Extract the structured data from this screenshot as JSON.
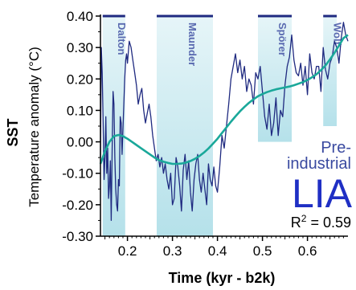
{
  "chart_data": {
    "type": "line",
    "xlabel": "Time (kyr - b2k)",
    "ylabel_bold": "SST",
    "ylabel": "Temperature anomaly (°C)",
    "xlim": [
      0.14,
      0.69
    ],
    "ylim": [
      -0.3,
      0.4
    ],
    "xticks": [
      {
        "value": 0.2,
        "label": "0.2"
      },
      {
        "value": 0.3,
        "label": "0.3"
      },
      {
        "value": 0.4,
        "label": "0.4"
      },
      {
        "value": 0.5,
        "label": "0.5"
      },
      {
        "value": 0.6,
        "label": "0.6"
      }
    ],
    "yticks": [
      {
        "value": 0.4,
        "label": "0.40"
      },
      {
        "value": 0.3,
        "label": "0.30"
      },
      {
        "value": 0.2,
        "label": "0.20"
      },
      {
        "value": 0.1,
        "label": "0.10"
      },
      {
        "value": 0.0,
        "label": "0.00"
      },
      {
        "value": -0.1,
        "label": "-0.10"
      },
      {
        "value": -0.2,
        "label": "-0.20"
      },
      {
        "value": -0.3,
        "label": "-0.30"
      }
    ],
    "grid": false,
    "minima": [
      {
        "name": "Dalton",
        "x_start": 0.145,
        "x_end": 0.195,
        "y_bottom": -0.3
      },
      {
        "name": "Maunder",
        "x_start": 0.265,
        "x_end": 0.39,
        "y_bottom": -0.3
      },
      {
        "name": "Spörer",
        "x_start": 0.49,
        "x_end": 0.565,
        "y_bottom": 0.0
      },
      {
        "name": "Wolf",
        "x_start": 0.635,
        "x_end": 0.665,
        "y_bottom": 0.05
      }
    ],
    "series": [
      {
        "color": "#1f2a80",
        "x": [
          0.14,
          0.142,
          0.144,
          0.146,
          0.148,
          0.15,
          0.152,
          0.154,
          0.156,
          0.158,
          0.16,
          0.162,
          0.164,
          0.166,
          0.168,
          0.17,
          0.172,
          0.174,
          0.176,
          0.178,
          0.18,
          0.182,
          0.184,
          0.186,
          0.188,
          0.19,
          0.192,
          0.194,
          0.196,
          0.198,
          0.2,
          0.204,
          0.208,
          0.212,
          0.216,
          0.22,
          0.224,
          0.228,
          0.232,
          0.236,
          0.24,
          0.244,
          0.248,
          0.252,
          0.256,
          0.26,
          0.264,
          0.268,
          0.272,
          0.276,
          0.28,
          0.284,
          0.288,
          0.292,
          0.296,
          0.3,
          0.304,
          0.308,
          0.312,
          0.316,
          0.32,
          0.324,
          0.328,
          0.332,
          0.336,
          0.34,
          0.344,
          0.348,
          0.352,
          0.356,
          0.36,
          0.364,
          0.368,
          0.372,
          0.376,
          0.38,
          0.384,
          0.388,
          0.392,
          0.396,
          0.4,
          0.405,
          0.41,
          0.415,
          0.42,
          0.425,
          0.43,
          0.435,
          0.44,
          0.445,
          0.45,
          0.455,
          0.46,
          0.465,
          0.47,
          0.475,
          0.48,
          0.485,
          0.49,
          0.495,
          0.5,
          0.505,
          0.51,
          0.515,
          0.52,
          0.525,
          0.53,
          0.535,
          0.54,
          0.545,
          0.55,
          0.555,
          0.56,
          0.565,
          0.57,
          0.575,
          0.58,
          0.585,
          0.59,
          0.595,
          0.6,
          0.605,
          0.61,
          0.615,
          0.62,
          0.625,
          0.63,
          0.635,
          0.64,
          0.645,
          0.65,
          0.655,
          0.66,
          0.665,
          0.67,
          0.675,
          0.68,
          0.685,
          0.69
        ],
        "y": [
          -0.05,
          0.3,
          0.22,
          0.05,
          -0.12,
          -0.05,
          0.08,
          -0.1,
          -0.02,
          -0.18,
          -0.14,
          -0.06,
          -0.25,
          -0.02,
          0.16,
          0.12,
          -0.05,
          -0.15,
          -0.2,
          -0.22,
          -0.12,
          -0.14,
          0.08,
          0.06,
          -0.04,
          0.04,
          0.12,
          0.2,
          0.26,
          0.28,
          0.25,
          0.32,
          0.3,
          0.26,
          0.22,
          0.18,
          0.12,
          0.15,
          0.17,
          0.1,
          0.06,
          0.09,
          0.12,
          0.08,
          0.02,
          -0.02,
          -0.06,
          -0.04,
          -0.08,
          -0.05,
          -0.1,
          -0.07,
          -0.12,
          -0.15,
          -0.1,
          -0.2,
          -0.18,
          -0.05,
          -0.08,
          -0.14,
          -0.22,
          -0.09,
          -0.04,
          -0.12,
          -0.06,
          -0.16,
          -0.22,
          -0.12,
          -0.07,
          -0.04,
          -0.12,
          -0.16,
          -0.1,
          -0.15,
          -0.2,
          -0.07,
          -0.12,
          -0.14,
          -0.08,
          -0.14,
          -0.16,
          -0.08,
          0.02,
          -0.02,
          0.05,
          0.12,
          0.2,
          0.24,
          0.28,
          0.22,
          0.26,
          0.2,
          0.24,
          0.16,
          0.2,
          0.18,
          0.12,
          0.22,
          0.2,
          0.24,
          0.16,
          0.08,
          0.04,
          0.12,
          0.02,
          0.06,
          0.14,
          0.02,
          0.1,
          0.08,
          0.18,
          0.24,
          0.27,
          0.34,
          0.26,
          0.22,
          0.21,
          0.25,
          0.18,
          0.24,
          0.15,
          0.28,
          0.22,
          0.2,
          0.24,
          0.24,
          0.16,
          0.3,
          0.23,
          0.2,
          0.25,
          0.27,
          0.32,
          0.3,
          0.25,
          0.33,
          0.38,
          0.34,
          0.32
        ]
      },
      {
        "color": "#1aa89a",
        "x": [
          0.14,
          0.15,
          0.16,
          0.17,
          0.18,
          0.19,
          0.2,
          0.21,
          0.22,
          0.23,
          0.24,
          0.25,
          0.26,
          0.27,
          0.28,
          0.29,
          0.3,
          0.31,
          0.32,
          0.33,
          0.34,
          0.35,
          0.36,
          0.37,
          0.38,
          0.39,
          0.4,
          0.41,
          0.42,
          0.43,
          0.44,
          0.45,
          0.46,
          0.47,
          0.48,
          0.49,
          0.5,
          0.51,
          0.52,
          0.53,
          0.54,
          0.55,
          0.56,
          0.57,
          0.58,
          0.59,
          0.6,
          0.61,
          0.62,
          0.63,
          0.64,
          0.65,
          0.66,
          0.67,
          0.68,
          0.69
        ],
        "y": [
          -0.07,
          -0.03,
          0.0,
          0.018,
          0.022,
          0.018,
          0.01,
          0.0,
          -0.01,
          -0.02,
          -0.03,
          -0.04,
          -0.05,
          -0.058,
          -0.063,
          -0.067,
          -0.07,
          -0.07,
          -0.069,
          -0.066,
          -0.061,
          -0.054,
          -0.045,
          -0.034,
          -0.021,
          -0.006,
          0.01,
          0.028,
          0.046,
          0.064,
          0.081,
          0.097,
          0.111,
          0.124,
          0.135,
          0.145,
          0.152,
          0.158,
          0.163,
          0.167,
          0.17,
          0.173,
          0.176,
          0.18,
          0.185,
          0.19,
          0.197,
          0.205,
          0.215,
          0.228,
          0.243,
          0.262,
          0.283,
          0.306,
          0.33,
          0.34
        ]
      }
    ],
    "annotations": {
      "pre": "Pre-",
      "industrial": "industrial",
      "lia": "LIA",
      "r2_prefix": "R",
      "r2_sup": "2",
      "r2_suffix": " = 0.59"
    }
  }
}
